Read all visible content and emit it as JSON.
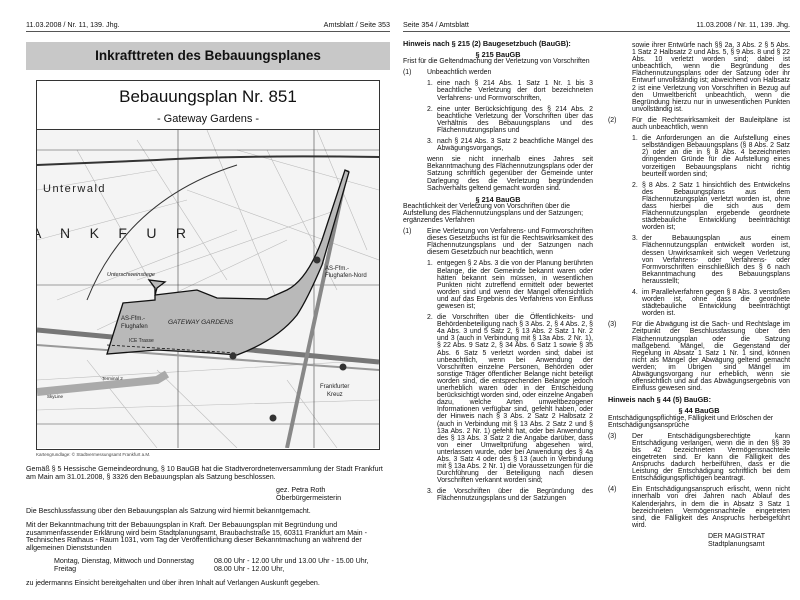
{
  "left_page": {
    "header_left": "11.03.2008 / Nr. 11, 139. Jhg.",
    "header_right": "Amtsblatt / Seite 353",
    "title": "Inkrafttreten des Bebauungsplanes",
    "plan_title": "Bebauungsplan Nr. 851",
    "plan_subtitle": "- Gateway Gardens -",
    "map_labels": {
      "unterwald": "Unterwald",
      "frankfurt": "A     N     K     F     U     R",
      "unterschweinstiege": "Unterschweinstiege",
      "as_nord": "AS-Ffm.-",
      "as_nord2": "Flughafen-Nord",
      "as_flug": "AS-Ffm.-",
      "as_flug2": "Flughafen",
      "gateway": "GATEWAY GARDENS",
      "ice": "ICE Trasse",
      "terminal": "Terminal 2",
      "skyline": "SkyLine",
      "kreuz1": "Frankfurter",
      "kreuz2": "Kreuz",
      "a3": "3",
      "a5": "5"
    },
    "caption": "Kartengrundlage: © Stadtvermessungsamt Frankfurt a.M.",
    "p1": "Gemäß § 5 Hessische Gemeindeordnung, § 10 BauGB hat die Stadtverordnetenversammlung der Stadt Frankfurt am Main am 31.01.2008, § 3326 den Bebauungsplan als Satzung beschlossen.",
    "sig1": "gez. Petra Roth",
    "sig2": "Oberbürgermeisterin",
    "p2": "Die Beschlussfassung über den Bebauungsplan als Satzung wird hiermit bekanntgemacht.",
    "p3": "Mit der Bekanntmachung tritt der Bebauungsplan in Kraft. Der Bebauungsplan mit Begründung und zusammenfassender Erklärung wird beim Stadtplanungsamt, Braubachstraße 15, 60311 Frankfurt am Main - Technisches Rathaus - Raum 1031, vom Tag der Veröffentlichung dieser Bekanntmachung an während der allgemeinen Dienststunden",
    "hours": [
      [
        "Montag, Dienstag, Mittwoch und Donnerstag",
        "08.00 Uhr - 12.00 Uhr und 13.00 Uhr - 15.00 Uhr,"
      ],
      [
        "Freitag",
        "08.00 Uhr - 12.00 Uhr,"
      ]
    ],
    "p4": "zu jedermanns Einsicht bereitgehalten und über ihren Inhalt auf Verlangen Auskunft gegeben."
  },
  "right_page": {
    "header_left": "Seite 354 / Amtsblatt",
    "header_right": "11.03.2008 / Nr. 11, 139. Jhg.",
    "h215": "Hinweis nach § 215 (2) Baugesetzbuch (BauGB):",
    "s215": "§ 215 BauGB",
    "s215_sub": "Frist für die Geltendmachung der Verletzung von Vorschriften",
    "s215_1_num": "(1)",
    "s215_1": "Unbeachtlich werden",
    "s215_items": [
      {
        "n": "1.",
        "t": "eine nach § 214 Abs. 1 Satz 1 Nr. 1 bis 3 beachtliche Verletzung der dort bezeichneten Verfahrens- und Formvorschriften,"
      },
      {
        "n": "2.",
        "t": "eine unter Berücksichtigung des § 214 Abs. 2 beachtliche Verletzung der Vorschriften über das Verhältnis des Bebauungsplans und des Flächennutzungsplans und"
      },
      {
        "n": "3.",
        "t": "nach § 214 Abs. 3 Satz 2 beachtliche Mängel des Abwägungsvorgangs,"
      }
    ],
    "s215_tail": "wenn sie nicht innerhalb eines Jahres seit Bekanntmachung des Flächennutzungsplans oder der Satzung schriftlich gegenüber der Gemeinde unter Darlegung des die Verletzung begründenden Sachverhalts geltend gemacht worden sind.",
    "s214": "§ 214 BauGB",
    "s214_sub": "Beachtlichkeit der Verletzung von Vorschriften über die Aufstellung des Flächennutzungsplans und der Satzungen; ergänzendes Verfahren",
    "s214_1_num": "(1)",
    "s214_1": "Eine Verletzung von Verfahrens- und Formvorschriften dieses Gesetzbuchs ist für die Rechtswirksamkeit des Flächennutzungsplans und der Satzungen nach diesem Gesetzbuch nur beachtlich, wenn",
    "s214_items": [
      {
        "n": "1.",
        "t": "entgegen § 2 Abs. 3 die von der Planung berührten Belange, die der Gemeinde bekannt waren oder hätten bekannt sein müssen, in wesentlichen Punkten nicht zutreffend ermittelt oder bewertet worden sind und wenn der Mangel offensichtlich und auf das Ergebnis des Verfahrens von Einfluss gewesen ist;"
      },
      {
        "n": "2.",
        "t": "die Vorschriften über die Öffentlichkeits- und Behördenbeteiligung nach § 3 Abs. 2, § 4 Abs. 2, § 4a Abs. 3 und 5 Satz 2, § 13 Abs. 2 Satz 1 Nr. 2 und 3 (auch in Verbindung mit § 13a Abs. 2 Nr. 1), § 22 Abs. 9 Satz 2, § 34 Abs. 6 Satz 1 sowie § 35 Abs. 6 Satz 5 verletzt worden sind; dabei ist unbeachtlich, wenn bei Anwendung der Vorschriften einzelne Personen, Behörden oder sonstige Träger öffentlicher Belange nicht beteiligt worden sind, die entsprechenden Belange jedoch unerheblich waren oder in der Entscheidung berücksichtigt worden sind, oder einzelne Angaben dazu, welche Arten umweltbezogener Informationen verfügbar sind, gefehlt haben, oder der Hinweis nach § 3 Abs. 2 Satz 2 Halbsatz 2 (auch in Verbindung mit § 13 Abs. 2 Satz 2 und § 13a Abs. 2 Nr. 1) gefehlt hat, oder bei Anwendung des § 13 Abs. 3 Satz 2 die Angabe darüber, dass von einer Umweltprüfung abgesehen wird, unterlassen wurde, oder bei Anwendung des § 4a Abs. 3 Satz 4 oder des § 13 (auch in Verbindung mit § 13a Abs. 2 Nr. 1) die Voraussetzungen für die Durchführung der Beteiligung nach diesen Vorschriften verkannt worden sind;"
      },
      {
        "n": "3.",
        "t": "die Vorschriften über die Begründung des Flächennutzungsplans und der Satzungen"
      }
    ],
    "col2_cont": "sowie ihrer Entwürfe nach §§ 2a, 3 Abs. 2 § 5 Abs. 1 Satz 2 Halbsatz 2 und Abs. 5, § 9 Abs. 8 und § 22 Abs. 10 verletzt worden sind; dabei ist unbeachtlich, wenn die Begründung des Flächennutzungsplans oder der Satzung oder ihr Entwurf unvollständig ist; abweichend von Halbsatz 2 ist eine Verletzung von Vorschriften in Bezug auf den Umweltbericht unbeachtlich, wenn die Begründung hierzu nur in unwesentlichen Punkten unvollständig ist.",
    "s214_2_num": "(2)",
    "s214_2": "Für die Rechtswirksamkeit der Bauleitpläne ist auch unbeachtlich, wenn",
    "s214_2_items": [
      {
        "n": "1.",
        "t": "die Anforderungen an die Aufstellung eines selbständigen Bebauungsplans (§ 8 Abs. 2 Satz 2) oder an die in § 8 Abs. 4 bezeichneten dringenden Gründe für die Aufstellung eines vorzeitigen Bebauungsplans nicht richtig beurteilt worden sind;"
      },
      {
        "n": "2.",
        "t": "§ 8 Abs. 2 Satz 1 hinsichtlich des Entwickelns des Bebauungsplans aus dem Flächennutzungsplan verletzt worden ist, ohne dass hierbei die sich aus dem Flächennutzungsplan ergebende geordnete städtebauliche Entwicklung beeinträchtigt worden ist;"
      },
      {
        "n": "3.",
        "t": "der Bebauungsplan aus einem Flächennutzungsplan entwickelt worden ist, dessen Unwirksamkeit sich wegen Verletzung von Verfahrens- oder Verfahrens- oder Formvorschriften einschließlich des § 6 nach Bekanntmachung des Bebauungsplans herausstellt;"
      },
      {
        "n": "4.",
        "t": "im Parallelverfahren gegen § 8 Abs. 3 verstoßen worden ist, ohne dass die geordnete städtebauliche Entwicklung beeinträchtigt worden ist."
      }
    ],
    "s214_3_num": "(3)",
    "s214_3": "Für die Abwägung ist die Sach- und Rechtslage im Zeitpunkt der Beschlussfassung über den Flächennutzungsplan oder die Satzung maßgebend. Mängel, die Gegenstand der Regelung in Absatz 1 Satz 1 Nr. 1 sind, können nicht als Mängel der Abwägung geltend gemacht werden; im Übrigen sind Mängel im Abwägungsvorgang nur erheblich, wenn sie offensichtlich und auf das Abwägungsergebnis von Einfluss gewesen sind.",
    "h44": "Hinweis nach § 44 (5) BauGB:",
    "s44": "§ 44 BauGB",
    "s44_sub": "Entschädigungspflichtige, Fälligkeit und Erlöschen der Entschädigungsansprüche",
    "s44_3_num": "(3)",
    "s44_3": "Der Entschädigungsberechtigte kann Entschädigung verlangen, wenn die in den §§ 39 bis 42 bezeichneten Vermögensnachteile eingetreten sind. Er kann die Fälligkeit des Anspruchs dadurch herbeiführen, dass er die Leistung der Entschädigung schriftlich bei dem Entschädigungspflichtigen beantragt.",
    "s44_4_num": "(4)",
    "s44_4": "Ein Entschädigungsanspruch erlischt, wenn nicht innerhalb von drei Jahren nach Ablauf des Kalenderjahrs, in dem die in Absatz 3 Satz 1 bezeichneten Vermögensnachteile eingetreten sind, die Fälligkeit des Anspruchs herbeigeführt wird.",
    "mag1": "DER MAGISTRAT",
    "mag2": "Stadtplanungsamt"
  }
}
